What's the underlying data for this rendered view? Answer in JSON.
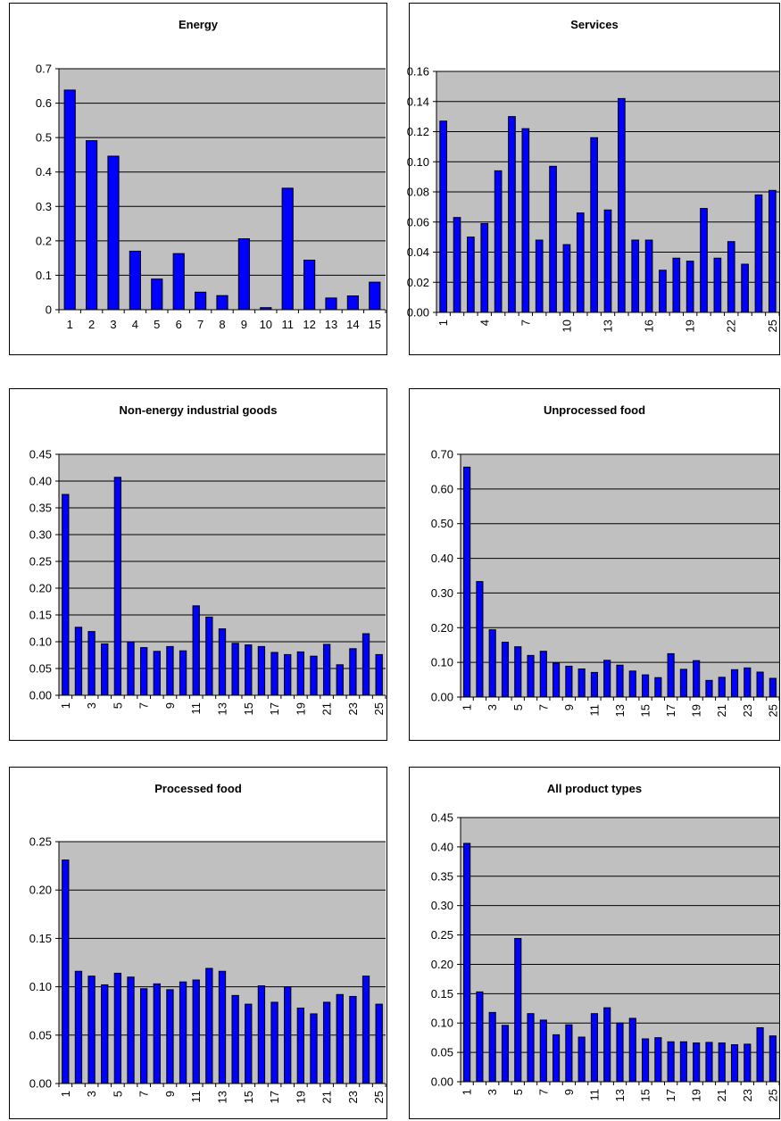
{
  "chart_data": [
    {
      "type": "bar",
      "title": "Energy",
      "categories": [
        "1",
        "2",
        "3",
        "4",
        "5",
        "6",
        "7",
        "8",
        "9",
        "10",
        "11",
        "12",
        "13",
        "14",
        "15"
      ],
      "x_tick_labels": [
        "1",
        "2",
        "3",
        "4",
        "5",
        "6",
        "7",
        "8",
        "9",
        "10",
        "11",
        "12",
        "13",
        "14",
        "15"
      ],
      "x_tick_rotated": false,
      "values": [
        0.638,
        0.491,
        0.446,
        0.17,
        0.089,
        0.163,
        0.051,
        0.041,
        0.206,
        0.006,
        0.353,
        0.144,
        0.034,
        0.04,
        0.08
      ],
      "ylim": [
        0,
        0.7
      ],
      "y_ticks": [
        "0",
        "0.1",
        "0.2",
        "0.3",
        "0.4",
        "0.5",
        "0.6",
        "0.7"
      ],
      "grid": true,
      "plot_background": "#c0c0c0",
      "bar_color": "#0000ff"
    },
    {
      "type": "bar",
      "title": "Services",
      "categories": [
        "1",
        "2",
        "3",
        "4",
        "5",
        "6",
        "7",
        "8",
        "9",
        "10",
        "11",
        "12",
        "13",
        "14",
        "15",
        "16",
        "17",
        "18",
        "19",
        "20",
        "21",
        "22",
        "23",
        "24",
        "25"
      ],
      "x_tick_labels": [
        "1",
        "4",
        "7",
        "10",
        "13",
        "16",
        "19",
        "22",
        "25"
      ],
      "x_tick_rotated": true,
      "values": [
        0.127,
        0.063,
        0.05,
        0.059,
        0.094,
        0.13,
        0.122,
        0.048,
        0.097,
        0.045,
        0.066,
        0.116,
        0.068,
        0.142,
        0.048,
        0.048,
        0.028,
        0.036,
        0.034,
        0.069,
        0.036,
        0.047,
        0.032,
        0.078,
        0.081
      ],
      "ylim": [
        0,
        0.16
      ],
      "y_ticks": [
        "0.00",
        "0.02",
        "0.04",
        "0.06",
        "0.08",
        "0.10",
        "0.12",
        "0.14",
        "0.16"
      ],
      "grid": true,
      "plot_background": "#c0c0c0",
      "bar_color": "#0000ff"
    },
    {
      "type": "bar",
      "title": "Non-energy industrial goods",
      "categories": [
        "1",
        "2",
        "3",
        "4",
        "5",
        "6",
        "7",
        "8",
        "9",
        "10",
        "11",
        "12",
        "13",
        "14",
        "15",
        "16",
        "17",
        "18",
        "19",
        "20",
        "21",
        "22",
        "23",
        "24",
        "25"
      ],
      "x_tick_labels": [
        "1",
        "3",
        "5",
        "7",
        "9",
        "11",
        "13",
        "15",
        "17",
        "19",
        "21",
        "23",
        "25"
      ],
      "x_tick_rotated": true,
      "values": [
        0.375,
        0.127,
        0.119,
        0.096,
        0.407,
        0.1,
        0.089,
        0.082,
        0.091,
        0.083,
        0.167,
        0.146,
        0.124,
        0.097,
        0.094,
        0.091,
        0.08,
        0.076,
        0.081,
        0.073,
        0.095,
        0.057,
        0.087,
        0.115,
        0.076
      ],
      "ylim": [
        0,
        0.45
      ],
      "y_ticks": [
        "0.00",
        "0.05",
        "0.10",
        "0.15",
        "0.20",
        "0.25",
        "0.30",
        "0.35",
        "0.40",
        "0.45"
      ],
      "grid": true,
      "plot_background": "#c0c0c0",
      "bar_color": "#0000ff"
    },
    {
      "type": "bar",
      "title": "Unprocessed food",
      "categories": [
        "1",
        "2",
        "3",
        "4",
        "5",
        "6",
        "7",
        "8",
        "9",
        "10",
        "11",
        "12",
        "13",
        "14",
        "15",
        "16",
        "17",
        "18",
        "19",
        "20",
        "21",
        "22",
        "23",
        "24",
        "25"
      ],
      "x_tick_labels": [
        "1",
        "3",
        "5",
        "7",
        "9",
        "11",
        "13",
        "15",
        "17",
        "19",
        "21",
        "23",
        "25"
      ],
      "x_tick_rotated": true,
      "values": [
        0.663,
        0.333,
        0.194,
        0.158,
        0.145,
        0.12,
        0.132,
        0.098,
        0.089,
        0.081,
        0.071,
        0.106,
        0.092,
        0.075,
        0.064,
        0.056,
        0.125,
        0.08,
        0.105,
        0.048,
        0.057,
        0.079,
        0.084,
        0.072,
        0.054
      ],
      "ylim": [
        0,
        0.7
      ],
      "y_ticks": [
        "0.00",
        "0.10",
        "0.20",
        "0.30",
        "0.40",
        "0.50",
        "0.60",
        "0.70"
      ],
      "grid": true,
      "plot_background": "#c0c0c0",
      "bar_color": "#0000ff"
    },
    {
      "type": "bar",
      "title": "Processed food",
      "categories": [
        "1",
        "2",
        "3",
        "4",
        "5",
        "6",
        "7",
        "8",
        "9",
        "10",
        "11",
        "12",
        "13",
        "14",
        "15",
        "16",
        "17",
        "18",
        "19",
        "20",
        "21",
        "22",
        "23",
        "24",
        "25"
      ],
      "x_tick_labels": [
        "1",
        "3",
        "5",
        "7",
        "9",
        "11",
        "13",
        "15",
        "17",
        "19",
        "21",
        "23",
        "25"
      ],
      "x_tick_rotated": true,
      "values": [
        0.231,
        0.116,
        0.111,
        0.102,
        0.114,
        0.11,
        0.098,
        0.103,
        0.097,
        0.105,
        0.107,
        0.119,
        0.116,
        0.091,
        0.082,
        0.101,
        0.084,
        0.1,
        0.078,
        0.072,
        0.084,
        0.092,
        0.09,
        0.111,
        0.082
      ],
      "ylim": [
        0,
        0.25
      ],
      "y_ticks": [
        "0.00",
        "0.05",
        "0.10",
        "0.15",
        "0.20",
        "0.25"
      ],
      "grid": true,
      "plot_background": "#c0c0c0",
      "bar_color": "#0000ff"
    },
    {
      "type": "bar",
      "title": "All product types",
      "categories": [
        "1",
        "2",
        "3",
        "4",
        "5",
        "6",
        "7",
        "8",
        "9",
        "10",
        "11",
        "12",
        "13",
        "14",
        "15",
        "16",
        "17",
        "18",
        "19",
        "20",
        "21",
        "22",
        "23",
        "24",
        "25"
      ],
      "x_tick_labels": [
        "1",
        "3",
        "5",
        "7",
        "9",
        "11",
        "13",
        "15",
        "17",
        "19",
        "21",
        "23",
        "25"
      ],
      "x_tick_rotated": true,
      "values": [
        0.406,
        0.153,
        0.118,
        0.096,
        0.244,
        0.116,
        0.105,
        0.08,
        0.097,
        0.076,
        0.116,
        0.126,
        0.1,
        0.108,
        0.073,
        0.075,
        0.068,
        0.068,
        0.066,
        0.067,
        0.066,
        0.063,
        0.064,
        0.092,
        0.078
      ],
      "ylim": [
        0,
        0.45
      ],
      "y_ticks": [
        "0.00",
        "0.05",
        "0.10",
        "0.15",
        "0.20",
        "0.25",
        "0.30",
        "0.35",
        "0.40",
        "0.45"
      ],
      "grid": true,
      "plot_background": "#c0c0c0",
      "bar_color": "#0000ff"
    }
  ]
}
